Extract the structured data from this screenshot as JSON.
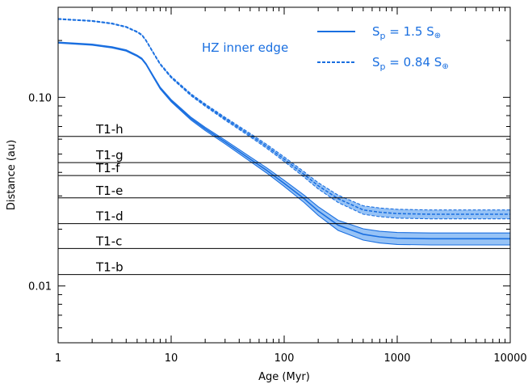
{
  "chart_data": {
    "type": "line",
    "xlabel": "Age (Myr)",
    "ylabel": "Distance (au)",
    "xscale": "log",
    "yscale": "log",
    "xlim": [
      1,
      10000
    ],
    "ylim": [
      0.005,
      0.3
    ],
    "x_ticks": [
      {
        "value": 1,
        "label": "1"
      },
      {
        "value": 10,
        "label": "10"
      },
      {
        "value": 100,
        "label": "100"
      },
      {
        "value": 1000,
        "label": "1000"
      },
      {
        "value": 10000,
        "label": "10000"
      }
    ],
    "y_ticks": [
      {
        "value": 0.1,
        "label": "0.10"
      },
      {
        "value": 0.01,
        "label": "0.01"
      }
    ],
    "annotation": "HZ inner edge",
    "planets": [
      {
        "name": "T1-h",
        "distance": 0.062
      },
      {
        "name": "T1-g",
        "distance": 0.0451
      },
      {
        "name": "T1-f",
        "distance": 0.0385
      },
      {
        "name": "T1-e",
        "distance": 0.0293
      },
      {
        "name": "T1-d",
        "distance": 0.0214
      },
      {
        "name": "T1-c",
        "distance": 0.0158
      },
      {
        "name": "T1-b",
        "distance": 0.0115
      }
    ],
    "series": [
      {
        "name": "S_p = 1.5 S_⊕",
        "legend_main": "S",
        "legend_sub": "p",
        "legend_rest": " = 1.5 S",
        "legend_symbol": "⊕",
        "style": "solid",
        "x": [
          1,
          2,
          3,
          4,
          5,
          5.5,
          6,
          7,
          8,
          10,
          15,
          20,
          30,
          50,
          70,
          100,
          150,
          200,
          300,
          500,
          700,
          1000,
          2000,
          5000,
          10000
        ],
        "y": [
          0.195,
          0.19,
          0.184,
          0.177,
          0.166,
          0.16,
          0.15,
          0.128,
          0.112,
          0.096,
          0.077,
          0.068,
          0.058,
          0.047,
          0.041,
          0.035,
          0.029,
          0.025,
          0.021,
          0.0188,
          0.0182,
          0.0179,
          0.0178,
          0.0178,
          0.0178
        ],
        "band_width": 0.0013
      },
      {
        "name": "S_p = 0.84 S_⊕",
        "legend_main": "S",
        "legend_sub": "p",
        "legend_rest": " = 0.84 S",
        "legend_symbol": "⊕",
        "style": "dashed",
        "x": [
          1,
          2,
          3,
          4,
          5,
          5.5,
          6,
          7,
          8,
          10,
          15,
          20,
          30,
          50,
          70,
          100,
          150,
          200,
          300,
          500,
          700,
          1000,
          2000,
          5000,
          10000
        ],
        "y": [
          0.26,
          0.254,
          0.246,
          0.236,
          0.222,
          0.214,
          0.2,
          0.171,
          0.15,
          0.128,
          0.103,
          0.091,
          0.077,
          0.063,
          0.055,
          0.047,
          0.039,
          0.034,
          0.029,
          0.0253,
          0.0246,
          0.0242,
          0.024,
          0.024,
          0.024
        ],
        "band_width": 0.0013
      }
    ],
    "colors": {
      "series": "#1a6fe0",
      "band": "#8cbcf5",
      "annotation": "#1a6fe0",
      "axis": "#000000",
      "planet_line": "#000000"
    },
    "legend_position": "top-right"
  }
}
